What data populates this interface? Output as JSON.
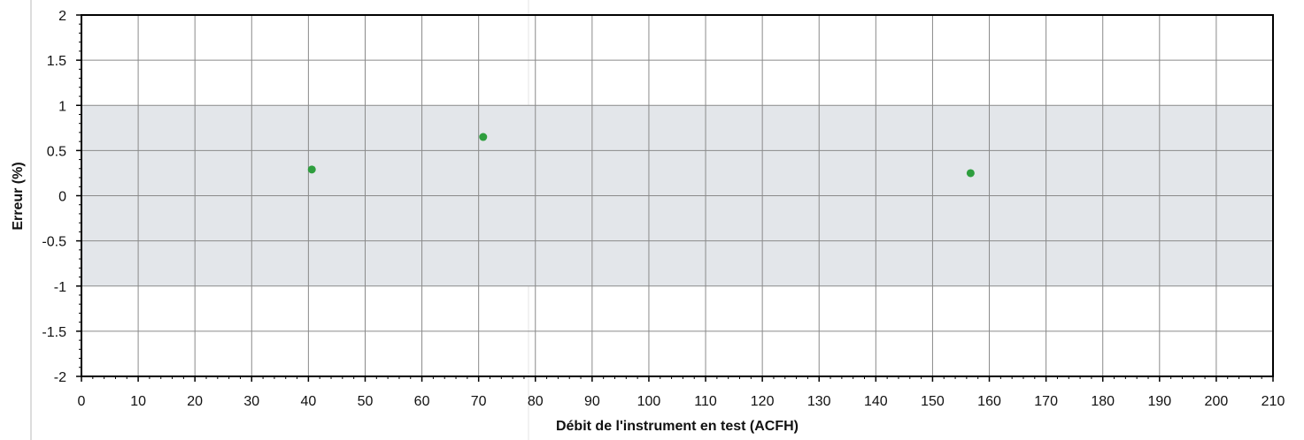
{
  "chart_data": {
    "type": "scatter",
    "title": "",
    "xlabel": "Débit de l'instrument en test (ACFH)",
    "ylabel": "Erreur (%)",
    "xlim": [
      0,
      210
    ],
    "ylim": [
      -2,
      2
    ],
    "x_ticks": [
      "0",
      "10",
      "20",
      "30",
      "40",
      "50",
      "60",
      "70",
      "80",
      "90",
      "100",
      "110",
      "120",
      "130",
      "140",
      "150",
      "160",
      "170",
      "180",
      "190",
      "200",
      "210"
    ],
    "y_ticks": [
      "2",
      "1.5",
      "1",
      "0.5",
      "0",
      "-0.5",
      "-1",
      "-1.5",
      "-2"
    ],
    "grid": true,
    "tolerance_band": [
      -1,
      1
    ],
    "series": [
      {
        "color": "#2e9e3e",
        "points": [
          {
            "x": 40.6,
            "y": 0.29
          },
          {
            "x": 70.8,
            "y": 0.65
          },
          {
            "x": 156.7,
            "y": 0.25
          }
        ]
      }
    ]
  }
}
